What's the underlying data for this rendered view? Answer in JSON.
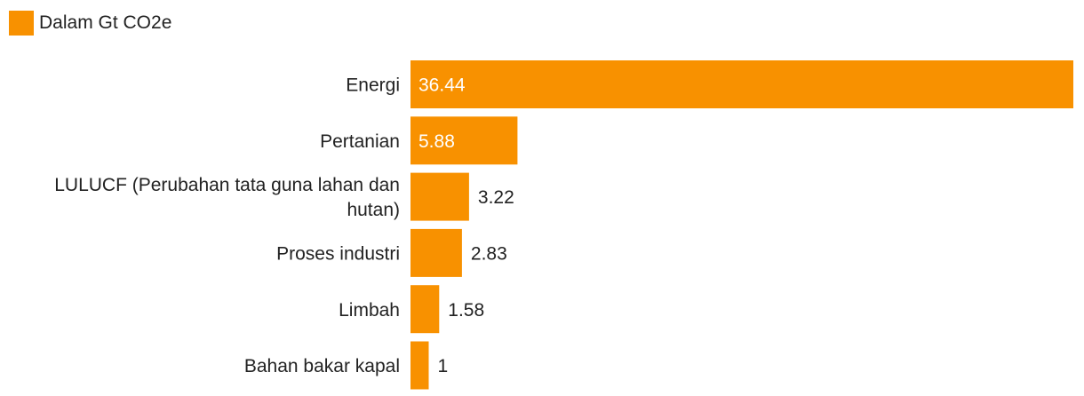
{
  "legend": {
    "label": "Dalam Gt CO2e"
  },
  "colors": {
    "bar": "#f89100",
    "label_inside": "#ffffff",
    "label_outside": "#222222",
    "category_text": "#222222"
  },
  "chart_data": {
    "type": "bar",
    "orientation": "horizontal",
    "title": "",
    "xlabel": "",
    "ylabel": "",
    "legend_position": "top-left",
    "grid": false,
    "series": [
      {
        "name": "Dalam Gt CO2e",
        "values": [
          36.44,
          5.88,
          3.22,
          2.83,
          1.58,
          1
        ]
      }
    ],
    "categories": [
      "Energi",
      "Pertanian",
      "LULUCF (Perubahan tata guna lahan dan hutan)",
      "Proses industri",
      "Limbah",
      "Bahan bakar kapal"
    ],
    "value_labels": [
      "36.44",
      "5.88",
      "3.22",
      "2.83",
      "1.58",
      "1"
    ],
    "category_label_lines": [
      [
        "Energi"
      ],
      [
        "Pertanian"
      ],
      [
        "LULUCF (Perubahan tata guna lahan dan",
        "hutan)"
      ],
      [
        "Proses industri"
      ],
      [
        "Limbah"
      ],
      [
        "Bahan bakar kapal"
      ]
    ],
    "xlim": [
      0,
      36.44
    ]
  }
}
